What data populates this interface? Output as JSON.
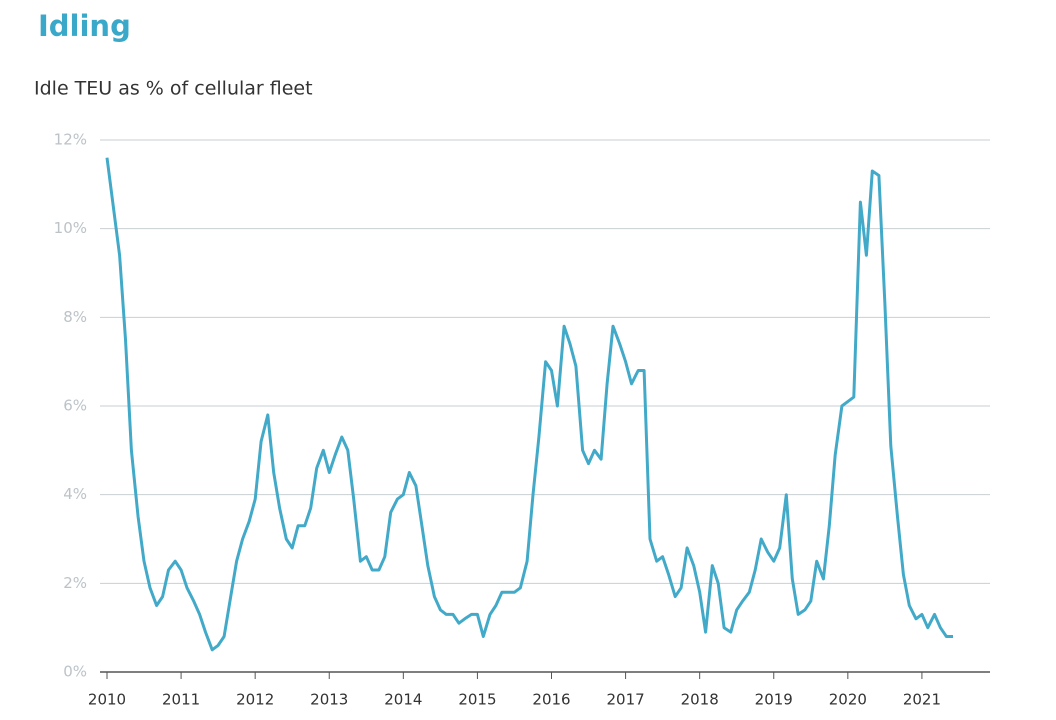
{
  "chart_data": {
    "type": "line",
    "title": "Idling",
    "subtitle": "Idle TEU as % of cellular fleet",
    "color": "#42aac8",
    "grid": true,
    "x": [
      2010.0,
      2010.17,
      2010.25,
      2010.33,
      2010.42,
      2010.5,
      2010.58,
      2010.67,
      2010.75,
      2010.83,
      2010.92,
      2011.0,
      2011.08,
      2011.17,
      2011.25,
      2011.33,
      2011.42,
      2011.5,
      2011.58,
      2011.67,
      2011.75,
      2011.83,
      2011.92,
      2012.0,
      2012.08,
      2012.17,
      2012.25,
      2012.33,
      2012.42,
      2012.5,
      2012.58,
      2012.67,
      2012.75,
      2012.83,
      2012.92,
      2013.0,
      2013.08,
      2013.17,
      2013.25,
      2013.33,
      2013.42,
      2013.5,
      2013.58,
      2013.67,
      2013.75,
      2013.83,
      2013.92,
      2014.0,
      2014.08,
      2014.17,
      2014.25,
      2014.33,
      2014.42,
      2014.5,
      2014.58,
      2014.67,
      2014.75,
      2014.83,
      2014.92,
      2015.0,
      2015.08,
      2015.17,
      2015.25,
      2015.33,
      2015.42,
      2015.5,
      2015.58,
      2015.67,
      2015.75,
      2015.83,
      2015.92,
      2016.0,
      2016.08,
      2016.17,
      2016.25,
      2016.33,
      2016.42,
      2016.5,
      2016.58,
      2016.67,
      2016.75,
      2016.83,
      2016.92,
      2017.0,
      2017.08,
      2017.17,
      2017.25,
      2017.33,
      2017.42,
      2017.5,
      2017.58,
      2017.67,
      2017.75,
      2017.83,
      2017.92,
      2018.0,
      2018.08,
      2018.17,
      2018.25,
      2018.33,
      2018.42,
      2018.5,
      2018.58,
      2018.67,
      2018.75,
      2018.83,
      2018.92,
      2019.0,
      2019.08,
      2019.17,
      2019.25,
      2019.33,
      2019.42,
      2019.5,
      2019.58,
      2019.67,
      2019.75,
      2019.83,
      2019.92,
      2020.0,
      2020.08,
      2020.17,
      2020.25,
      2020.33,
      2020.42,
      2020.5,
      2020.58,
      2020.67,
      2020.75,
      2020.83,
      2020.92,
      2021.0,
      2021.08,
      2021.17,
      2021.25,
      2021.33,
      2021.42
    ],
    "values": [
      11.6,
      9.4,
      7.5,
      5.0,
      3.5,
      2.5,
      1.9,
      1.5,
      1.7,
      2.3,
      2.5,
      2.3,
      1.9,
      1.6,
      1.3,
      0.9,
      0.5,
      0.6,
      0.8,
      1.7,
      2.5,
      3.0,
      3.4,
      3.9,
      5.2,
      5.8,
      4.5,
      3.7,
      3.0,
      2.8,
      3.3,
      3.3,
      3.7,
      4.6,
      5.0,
      4.5,
      4.9,
      5.3,
      5.0,
      3.9,
      2.5,
      2.6,
      2.3,
      2.3,
      2.6,
      3.6,
      3.9,
      4.0,
      4.5,
      4.2,
      3.3,
      2.4,
      1.7,
      1.4,
      1.3,
      1.3,
      1.1,
      1.2,
      1.3,
      1.3,
      0.8,
      1.3,
      1.5,
      1.8,
      1.8,
      1.8,
      1.9,
      2.5,
      4.0,
      5.3,
      7.0,
      6.8,
      6.0,
      7.8,
      7.4,
      6.9,
      5.0,
      4.7,
      5.0,
      4.8,
      6.5,
      7.8,
      7.4,
      7.0,
      6.5,
      6.8,
      6.8,
      3.0,
      2.5,
      2.6,
      2.2,
      1.7,
      1.9,
      2.8,
      2.4,
      1.8,
      0.9,
      2.4,
      2.0,
      1.0,
      0.9,
      1.4,
      1.6,
      1.8,
      2.3,
      3.0,
      2.7,
      2.5,
      2.8,
      4.0,
      2.1,
      1.3,
      1.4,
      1.6,
      2.5,
      2.1,
      3.3,
      4.9,
      6.0,
      6.1,
      6.2,
      10.6,
      9.4,
      11.3,
      11.2,
      8.3,
      5.1,
      3.5,
      2.2,
      1.5,
      1.2,
      1.3,
      1.0,
      1.3,
      1.0,
      0.8,
      0.8
    ],
    "xlim": [
      2010,
      2022
    ],
    "xticks": [
      2010,
      2011,
      2012,
      2013,
      2014,
      2015,
      2016,
      2017,
      2018,
      2019,
      2020,
      2021
    ],
    "ylim": [
      0,
      12
    ],
    "yticks": [
      {
        "value": 0,
        "label": "0%"
      },
      {
        "value": 2,
        "label": "2%"
      },
      {
        "value": 4,
        "label": "4%"
      },
      {
        "value": 6,
        "label": "6%"
      },
      {
        "value": 8,
        "label": "8%"
      },
      {
        "value": 10,
        "label": "10%"
      },
      {
        "value": 12,
        "label": "12%"
      }
    ]
  }
}
